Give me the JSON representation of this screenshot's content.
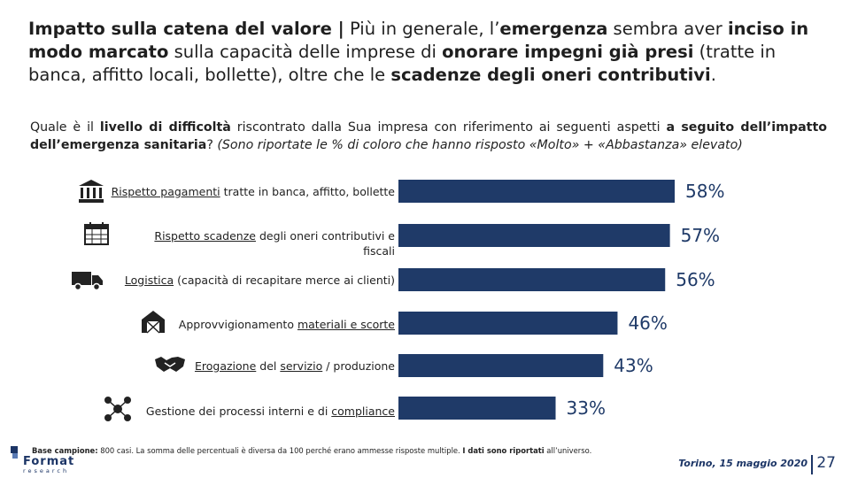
{
  "headline": {
    "lead": "Impatto sulla catena del valore |",
    "t1": " Più in generale, l’",
    "b1": "emergenza",
    "t2": " sembra aver ",
    "b2": "inciso in modo marcato",
    "t3": " sulla capacità delle imprese di ",
    "b3": "onorare impegni già presi",
    "t4": " (tratte in banca, affitto locali, bollette), oltre che le ",
    "b4": "scadenze degli oneri contributivi",
    "t5": "."
  },
  "question": {
    "q1": "Quale è il ",
    "q1b": "livello di difficoltà",
    "q2": " riscontrato dalla Sua impresa con riferimento ai seguenti aspetti ",
    "q2b": "a seguito dell’impatto dell’emergenza sanitaria",
    "q3": "? ",
    "note": "(Sono riportate le % di coloro che hanno risposto «Molto» + «Abbastanza» elevato)"
  },
  "rows": [
    {
      "u": "Rispetto pagamenti",
      "rest": " tratte in banca, affitto, bollette",
      "rest2": "",
      "icon": "bank-icon"
    },
    {
      "u": "Rispetto scadenze",
      "rest": " degli oneri contributivi e",
      "rest2": "fiscali",
      "icon": "calendar-icon"
    },
    {
      "u": "Logistica",
      "rest": " (capacità di recapitare merce ai clienti)",
      "rest2": "",
      "icon": "truck-icon"
    },
    {
      "pre": "Approvvigionamento ",
      "u": "materiali e scorte",
      "rest": "",
      "rest2": "",
      "icon": "warehouse-icon"
    },
    {
      "u": "Erogazione",
      "mid": " del ",
      "u2": "servizio",
      "rest": " / produzione",
      "rest2": "",
      "icon": "handshake-icon"
    },
    {
      "pre": "Gestione dei processi interni e di ",
      "u": "compliance",
      "rest": "",
      "rest2": "",
      "icon": "network-icon"
    }
  ],
  "chart_data": {
    "type": "bar",
    "orientation": "horizontal",
    "categories": [
      "Rispetto pagamenti tratte in banca, affitto, bollette",
      "Rispetto scadenze degli oneri contributivi e fiscali",
      "Logistica (capacità di recapitare merce ai clienti)",
      "Approvvigionamento materiali e scorte",
      "Erogazione del servizio / produzione",
      "Gestione dei processi interni e di compliance"
    ],
    "values": [
      58,
      57,
      56,
      46,
      43,
      33
    ],
    "labels": [
      "58%",
      "57%",
      "56%",
      "46%",
      "43%",
      "33%"
    ],
    "xlim": [
      0,
      58
    ],
    "bar_color": "#1f3a68"
  },
  "footer": {
    "note_bold": "Base campione:",
    "note_text": " 800 casi. La somma delle percentuali è diversa da 100 perché erano ammesse risposte multiple. ",
    "note_bold2": "I dati sono riportati",
    "note_text2": " all’universo.",
    "date": "Torino, 15 maggio 2020",
    "page": "27",
    "logo_word": "Format",
    "logo_sub": "research"
  }
}
